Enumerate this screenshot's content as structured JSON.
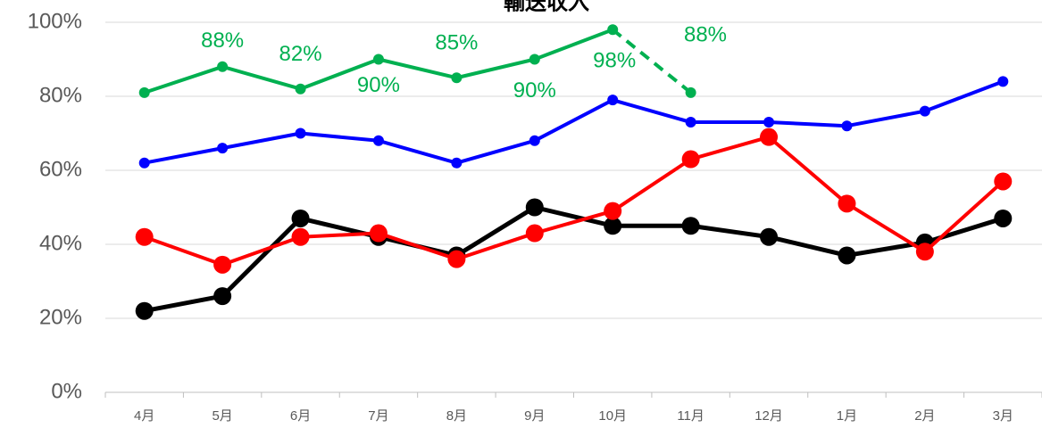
{
  "chart_data": {
    "type": "line",
    "title": "輸送収入",
    "categories": [
      "4月",
      "5月",
      "6月",
      "7月",
      "8月",
      "9月",
      "10月",
      "11月",
      "12月",
      "1月",
      "2月",
      "3月"
    ],
    "ylim": [
      0,
      100
    ],
    "yticks": [
      {
        "value": 0,
        "label": "0%"
      },
      {
        "value": 20,
        "label": "20%"
      },
      {
        "value": 40,
        "label": "40%"
      },
      {
        "value": 60,
        "label": "60%"
      },
      {
        "value": 80,
        "label": "80%"
      },
      {
        "value": 100,
        "label": "100%"
      }
    ],
    "grid": true,
    "series": [
      {
        "color": "#000000",
        "values": [
          22,
          26,
          47,
          42,
          37,
          50,
          45,
          45,
          42,
          37,
          40.5,
          47
        ]
      },
      {
        "color": "#ff0000",
        "values": [
          42,
          34.5,
          42,
          43,
          36,
          43,
          49,
          63,
          69,
          51,
          38,
          57
        ]
      },
      {
        "color": "#0000ff",
        "values": [
          62,
          66,
          70,
          68,
          62,
          68,
          79,
          73,
          73,
          72,
          76,
          84
        ]
      },
      {
        "color": "#00b050",
        "values": [
          81,
          88,
          82,
          90,
          85,
          90,
          98,
          81,
          null,
          null,
          null,
          null
        ],
        "value_labels": [
          null,
          "88%",
          "82%",
          "90%",
          "85%",
          "90%",
          "98%",
          null,
          null,
          null,
          null,
          null
        ],
        "dash_from": 6
      }
    ],
    "annotations": [
      "88%"
    ]
  }
}
